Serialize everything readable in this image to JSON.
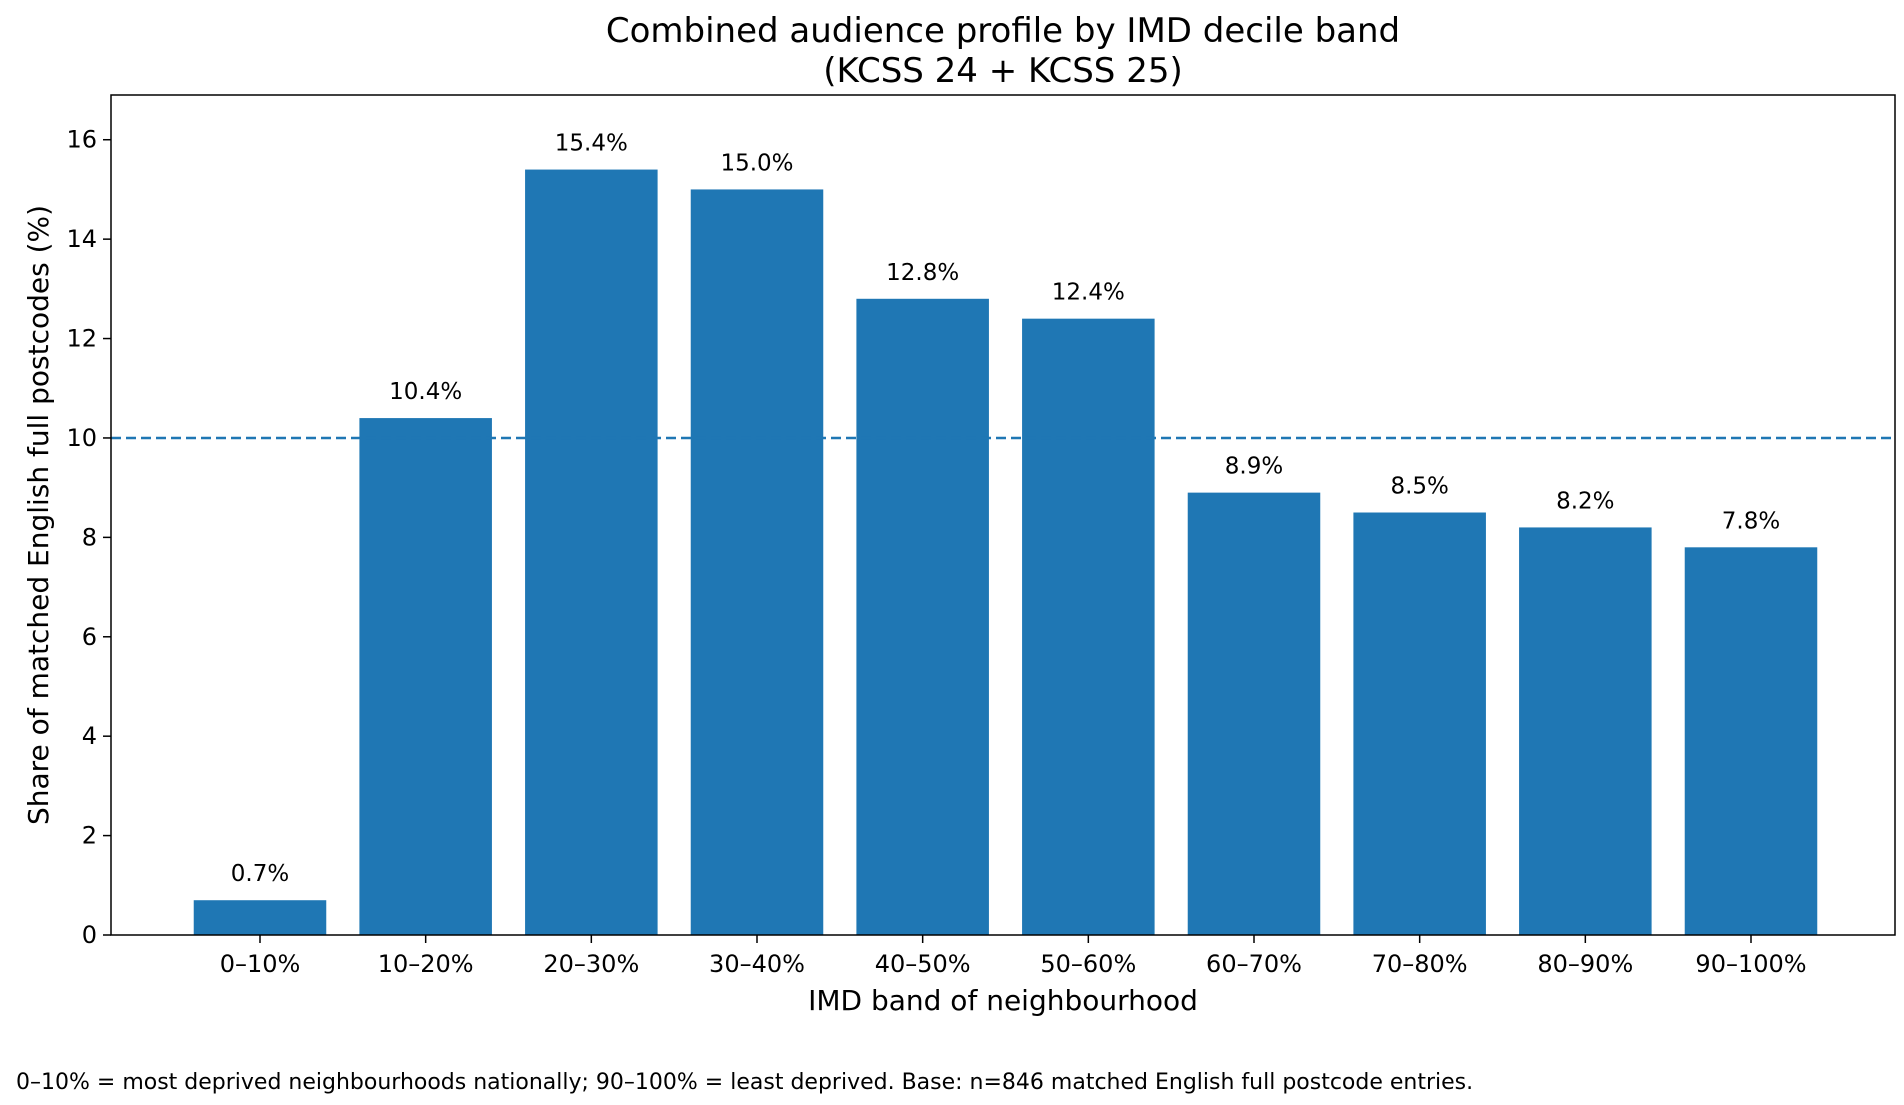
{
  "chart_data": {
    "type": "bar",
    "title": [
      "Combined audience profile by IMD decile band",
      "(KCSS 24 + KCSS 25)"
    ],
    "xlabel": "IMD band of neighbourhood",
    "ylabel": "Share of matched English full postcodes (%)",
    "categories": [
      "0–10%",
      "10–20%",
      "20–30%",
      "30–40%",
      "40–50%",
      "50–60%",
      "60–70%",
      "70–80%",
      "80–90%",
      "90–100%"
    ],
    "values": [
      0.7,
      10.4,
      15.4,
      15.0,
      12.8,
      12.4,
      8.9,
      8.5,
      8.2,
      7.8
    ],
    "data_labels": [
      "0.7%",
      "10.4%",
      "15.4%",
      "15.0%",
      "12.8%",
      "12.4%",
      "8.9%",
      "8.5%",
      "8.2%",
      "7.8%"
    ],
    "ylim": [
      0,
      16.9
    ],
    "yticks": [
      0,
      2,
      4,
      6,
      8,
      10,
      12,
      14,
      16
    ],
    "reference_line": {
      "value": 10,
      "style": "dashed"
    },
    "bar_color": "#1f77b4",
    "reference_line_color": "#1f77b4",
    "grid": false,
    "footnote": "0–10% = most deprived neighbourhoods nationally; 90–100% = least deprived. Base: n=846 matched English full postcode entries."
  }
}
